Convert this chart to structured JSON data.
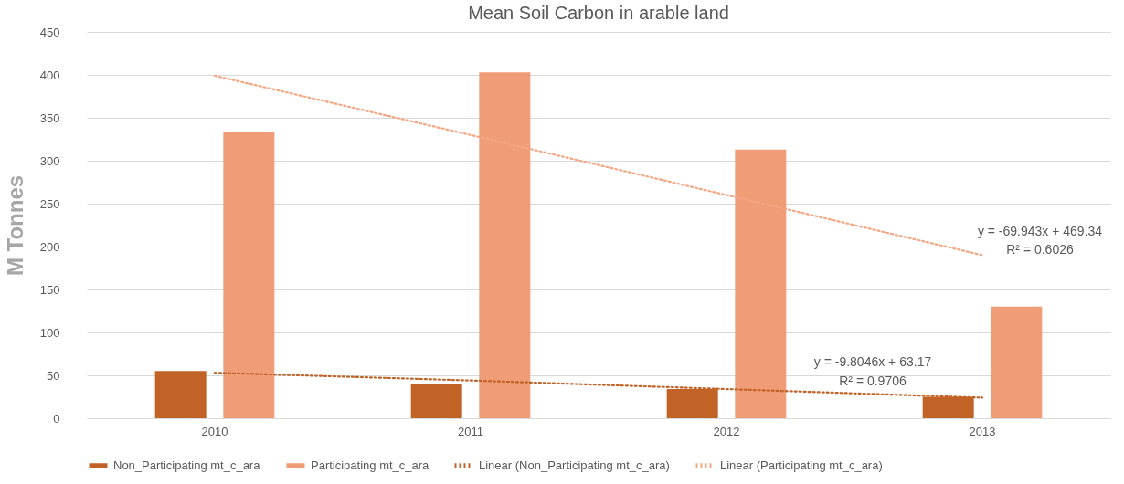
{
  "chart_data": {
    "type": "bar",
    "title": "Mean Soil Carbon in arable land",
    "ylabel": "M Tonnes",
    "categories": [
      "2010",
      "2011",
      "2012",
      "2013"
    ],
    "series": [
      {
        "name": "Non_Participating  mt_c_ara",
        "color": "#c16326",
        "values": [
          55,
          40,
          34,
          25
        ]
      },
      {
        "name": "Participating  mt_c_ara",
        "color": "#ef9c77",
        "values": [
          333,
          403,
          313,
          130
        ]
      },
      {
        "name": "Linear (Non_Participating  mt_c_ara)",
        "type": "line",
        "line_style": "dotted",
        "color": "#c16326",
        "values": [
          53,
          44,
          34,
          24
        ]
      },
      {
        "name": "Linear (Participating  mt_c_ara)",
        "type": "line",
        "line_style": "dotted",
        "color": "#f4a582",
        "values": [
          399,
          330,
          260,
          190
        ]
      }
    ],
    "ylim": [
      0,
      450
    ],
    "yticks": [
      0,
      50,
      100,
      150,
      200,
      250,
      300,
      350,
      400,
      450
    ],
    "grid": "y",
    "legend": "bottom",
    "annotations": [
      "y = -69.943x + 469.34",
      "R² = 0.6026",
      "y = -9.8046x + 63.17",
      "R² = 0.9706"
    ]
  }
}
